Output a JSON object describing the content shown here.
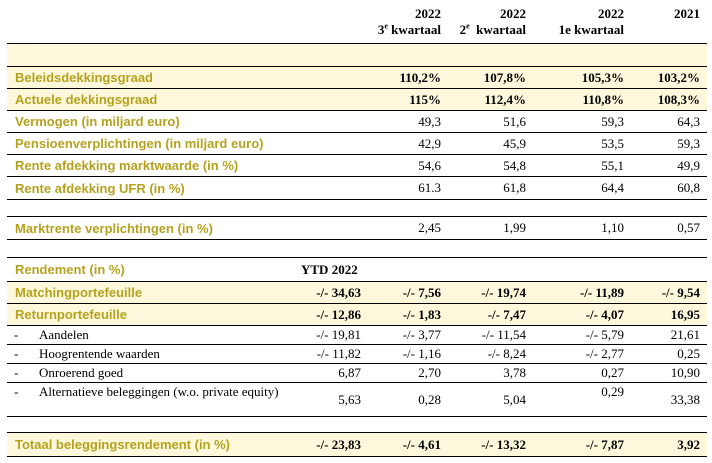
{
  "header": {
    "c2": {
      "year": "2022",
      "q_num": "3",
      "q_sup": "e",
      "q_text": " kwartaal"
    },
    "c3": {
      "year": "2022",
      "q_num": "2",
      "q_sup": "e",
      "q_text": "  kwartaal"
    },
    "c4": {
      "year": "2022",
      "q_text": "1e kwartaal"
    },
    "c5": {
      "year": "2021"
    }
  },
  "funding": [
    {
      "label": "Beleidsdekkingsgraad",
      "c2": "110,2%",
      "c3": "107,8%",
      "c4": "105,3%",
      "c5": "103,2%"
    },
    {
      "label": "Actuele dekkingsgraad",
      "c2": "115%",
      "c3": "112,4%",
      "c4": "110,8%",
      "c5": "108,3%"
    },
    {
      "label": "Vermogen (in miljard euro)",
      "c2": "49,3",
      "c3": "51,6",
      "c4": "59,3",
      "c5": "64,3"
    },
    {
      "label": "Pensioenverplichtingen (in miljard euro)",
      "c2": "42,9",
      "c3": "45,9",
      "c4": "53,5",
      "c5": "59,3"
    },
    {
      "label": "Rente afdekking marktwaarde (in %)",
      "c2": "54,6",
      "c3": "54,8",
      "c4": "55,1",
      "c5": "49,9"
    },
    {
      "label": "Rente afdekking UFR (in %)",
      "c2": "61.3",
      "c3": "61,8",
      "c4": "64,4",
      "c5": "60,8"
    }
  ],
  "marktrente": {
    "label": "Marktrente verplichtingen (in %)",
    "c2": "2,45",
    "c3": "1,99",
    "c4": "1,10",
    "c5": "0,57"
  },
  "rendement_header": {
    "label": "Rendement (in %)",
    "ytd": "YTD 2022"
  },
  "matching": {
    "label": "Matchingportefeuille",
    "c1": "-/- 34,63",
    "c2": "-/- 7,56",
    "c3": "-/- 19,74",
    "c4": "-/- 11,89",
    "c5": "-/- 9,54"
  },
  "return": {
    "label": "Returnportefeuille",
    "c1": "-/- 12,86",
    "c2": "-/- 1,83",
    "c3": "-/- 7,47",
    "c4": "-/- 4,07",
    "c5": "16,95"
  },
  "sub_rows": [
    {
      "dash": "-",
      "label": "Aandelen",
      "c1": "-/- 19,81",
      "c2": "-/- 3,77",
      "c3": "-/- 11,54",
      "c4": "-/- 5,79",
      "c5": "21,61"
    },
    {
      "dash": "-",
      "label": "Hoogrentende waarden",
      "c1": "-/- 11,82",
      "c2": "-/- 1,16",
      "c3": "-/- 8,24",
      "c4": "-/- 2,77",
      "c5": "0,25"
    },
    {
      "dash": "-",
      "label": "Onroerend goed",
      "c1": "6,87",
      "c2": "2,70",
      "c3": "3,78",
      "c4": "0,27",
      "c5": "10,90"
    },
    {
      "dash": "-",
      "label": "Alternatieve beleggingen (w.o. private equity)",
      "c1": "5,63",
      "c2": "0,28",
      "c3": "5,04",
      "c4": "0,29",
      "c5": "33,38"
    }
  ],
  "totaal": {
    "label": "Totaal beleggingsrendement (in %)",
    "c1": "-/- 23,83",
    "c2": "-/- 4,61",
    "c3": "-/- 13,32",
    "c4": "-/- 7,87",
    "c5": "3,92"
  }
}
